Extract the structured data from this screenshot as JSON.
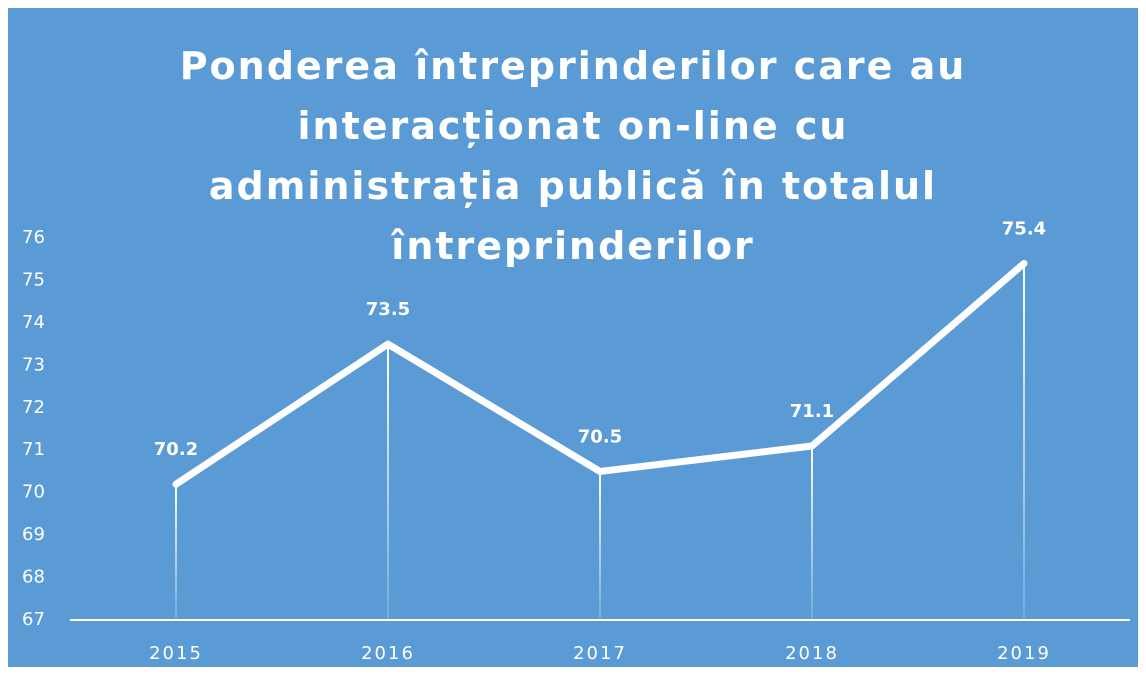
{
  "chart_data": {
    "type": "line",
    "title": "Ponderea întreprinderilor care au interacționat on-line cu administrația publică în totalul întreprinderilor",
    "categories": [
      "2015",
      "2016",
      "2017",
      "2018",
      "2019"
    ],
    "values": [
      70.2,
      73.5,
      70.5,
      71.1,
      75.4
    ],
    "color": "#ffffff",
    "background": "#5b9bd5",
    "ylim": [
      67,
      76
    ],
    "yticks": [
      67,
      68,
      69,
      70,
      71,
      72,
      73,
      74,
      75,
      76
    ],
    "grid": false,
    "data_labels": true,
    "drop_lines": true
  }
}
